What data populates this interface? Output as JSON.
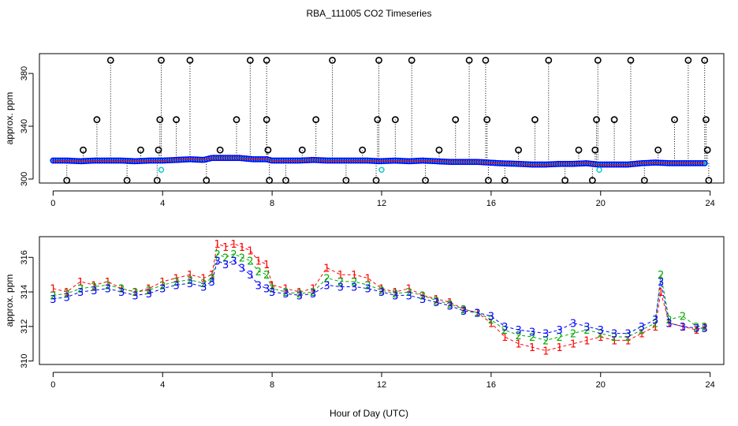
{
  "chart_data": {
    "title": "RBA_111005  CO2 Timeseries",
    "xlabel": "Hour of Day (UTC)",
    "panels": [
      {
        "id": "top",
        "type": "scatter",
        "ylabel": "approx. ppm",
        "xlim": [
          -0.5,
          24.5
        ],
        "ylim": [
          297,
          395
        ],
        "xticks": [
          0,
          4,
          8,
          12,
          16,
          20,
          24
        ],
        "yticks": [
          300,
          340,
          380
        ],
        "colors": {
          "outlier": "#000000",
          "trace": "#0000ff",
          "fill": "#00cccc",
          "fit": "#ff0000"
        },
        "baseline": {
          "x": [
            0,
            0.5,
            1,
            1.5,
            2,
            2.5,
            3,
            3.5,
            4,
            4.5,
            5,
            5.5,
            5.8,
            6.3,
            6.8,
            7.3,
            7.8,
            8,
            8.5,
            9,
            9.5,
            10,
            10.5,
            11,
            11.5,
            11.9,
            12.5,
            13,
            13.5,
            14,
            14.5,
            15,
            15.5,
            15.9,
            16.3,
            17,
            17.5,
            18,
            18.5,
            19,
            19.5,
            19.9,
            20.5,
            21,
            21.5,
            22,
            22.5,
            23,
            23.5,
            23.8
          ],
          "y": [
            314,
            314,
            313.5,
            314,
            314,
            314,
            313.5,
            314,
            314,
            314.5,
            315,
            314.5,
            316,
            316,
            316,
            315,
            315,
            314,
            314,
            314,
            314.5,
            314,
            314,
            314,
            314,
            313.5,
            314,
            313.5,
            314,
            313.5,
            313,
            313,
            313,
            312.5,
            312,
            311.5,
            311,
            311,
            311.5,
            311.5,
            312,
            311,
            311,
            311,
            312,
            312.5,
            312,
            312,
            312,
            312
          ]
        },
        "outliers": [
          {
            "x": 0.5,
            "y": 299
          },
          {
            "x": 1.1,
            "y": 322
          },
          {
            "x": 1.6,
            "y": 345
          },
          {
            "x": 2.1,
            "y": 390
          },
          {
            "x": 2.7,
            "y": 299
          },
          {
            "x": 3.2,
            "y": 322
          },
          {
            "x": 3.8,
            "y": 299
          },
          {
            "x": 3.85,
            "y": 322
          },
          {
            "x": 3.9,
            "y": 345
          },
          {
            "x": 3.95,
            "y": 390
          },
          {
            "x": 4.5,
            "y": 345
          },
          {
            "x": 5.0,
            "y": 390
          },
          {
            "x": 5.6,
            "y": 299
          },
          {
            "x": 6.1,
            "y": 322
          },
          {
            "x": 6.7,
            "y": 345
          },
          {
            "x": 7.2,
            "y": 390
          },
          {
            "x": 7.8,
            "y": 390
          },
          {
            "x": 7.8,
            "y": 345
          },
          {
            "x": 7.85,
            "y": 322
          },
          {
            "x": 7.9,
            "y": 299
          },
          {
            "x": 8.5,
            "y": 299
          },
          {
            "x": 9.1,
            "y": 322
          },
          {
            "x": 9.6,
            "y": 345
          },
          {
            "x": 10.2,
            "y": 390
          },
          {
            "x": 10.7,
            "y": 299
          },
          {
            "x": 11.3,
            "y": 322
          },
          {
            "x": 11.8,
            "y": 299
          },
          {
            "x": 11.85,
            "y": 345
          },
          {
            "x": 11.9,
            "y": 390
          },
          {
            "x": 12.5,
            "y": 345
          },
          {
            "x": 13.1,
            "y": 390
          },
          {
            "x": 13.6,
            "y": 299
          },
          {
            "x": 14.1,
            "y": 322
          },
          {
            "x": 14.7,
            "y": 345
          },
          {
            "x": 15.2,
            "y": 390
          },
          {
            "x": 15.8,
            "y": 390
          },
          {
            "x": 15.85,
            "y": 345
          },
          {
            "x": 15.9,
            "y": 299
          },
          {
            "x": 16.5,
            "y": 299
          },
          {
            "x": 17.0,
            "y": 322
          },
          {
            "x": 17.6,
            "y": 345
          },
          {
            "x": 18.1,
            "y": 390
          },
          {
            "x": 18.7,
            "y": 299
          },
          {
            "x": 19.2,
            "y": 322
          },
          {
            "x": 19.7,
            "y": 299
          },
          {
            "x": 19.8,
            "y": 322
          },
          {
            "x": 19.85,
            "y": 345
          },
          {
            "x": 19.9,
            "y": 390
          },
          {
            "x": 20.5,
            "y": 345
          },
          {
            "x": 21.1,
            "y": 390
          },
          {
            "x": 21.6,
            "y": 299
          },
          {
            "x": 22.1,
            "y": 322
          },
          {
            "x": 22.7,
            "y": 345
          },
          {
            "x": 23.2,
            "y": 390
          },
          {
            "x": 23.8,
            "y": 390
          },
          {
            "x": 23.85,
            "y": 345
          },
          {
            "x": 23.9,
            "y": 322
          },
          {
            "x": 23.95,
            "y": 299
          }
        ],
        "low_points": [
          {
            "x": 3.95,
            "y": 307
          },
          {
            "x": 12.0,
            "y": 307
          },
          {
            "x": 19.95,
            "y": 307
          }
        ]
      },
      {
        "id": "bottom",
        "type": "line",
        "ylabel": "approx. ppm",
        "xlim": [
          -0.5,
          24.5
        ],
        "ylim": [
          309.8,
          317.2
        ],
        "xticks": [
          0,
          4,
          8,
          12,
          16,
          20,
          24
        ],
        "yticks": [
          310,
          312,
          314,
          316
        ],
        "colors": {
          "1": "#ff0000",
          "2": "#00aa00",
          "3": "#0000ff"
        },
        "x": [
          0,
          0.5,
          1,
          1.5,
          2,
          2.5,
          3,
          3.5,
          4,
          4.5,
          5,
          5.5,
          5.8,
          6.0,
          6.3,
          6.6,
          6.9,
          7.2,
          7.5,
          7.8,
          8,
          8.5,
          9,
          9.5,
          10,
          10.5,
          11,
          11.5,
          12,
          12.5,
          13,
          13.5,
          14,
          14.5,
          15,
          15.5,
          16,
          16.5,
          17,
          17.5,
          18,
          18.5,
          19,
          19.5,
          20,
          20.5,
          21,
          21.5,
          22,
          22.2,
          22.5,
          23,
          23.5,
          23.8
        ],
        "series": [
          {
            "name": "1",
            "values": [
              314.2,
              314.0,
              314.6,
              314.4,
              314.6,
              314.2,
              314.0,
              314.2,
              314.6,
              314.8,
              315.0,
              314.8,
              315.0,
              316.8,
              316.6,
              316.8,
              316.6,
              316.4,
              315.8,
              315.6,
              314.4,
              314.2,
              314.0,
              314.2,
              315.4,
              315.0,
              315.0,
              314.8,
              314.2,
              314.0,
              314.2,
              313.8,
              313.6,
              313.4,
              313.0,
              312.8,
              312.2,
              311.4,
              311.0,
              310.8,
              310.6,
              310.8,
              311.0,
              311.2,
              311.4,
              311.2,
              311.2,
              311.6,
              312.0,
              314.0,
              312.2,
              312.0,
              311.8,
              312.0
            ]
          },
          {
            "name": "2",
            "values": [
              313.8,
              313.9,
              314.2,
              314.3,
              314.4,
              314.2,
              314.0,
              314.1,
              314.4,
              314.6,
              314.7,
              314.5,
              314.8,
              316.2,
              316.0,
              316.2,
              316.0,
              315.8,
              315.2,
              315.0,
              314.2,
              314.0,
              313.9,
              314.0,
              314.8,
              314.6,
              314.6,
              314.4,
              314.1,
              313.9,
              314.0,
              313.8,
              313.5,
              313.3,
              313.0,
              312.8,
              312.4,
              311.8,
              311.5,
              311.4,
              311.2,
              311.4,
              311.6,
              311.8,
              311.6,
              311.4,
              311.4,
              311.8,
              312.2,
              315.0,
              312.4,
              312.6,
              312.0,
              312.0
            ]
          },
          {
            "name": "3",
            "values": [
              313.6,
              313.7,
              314.0,
              314.1,
              314.2,
              314.0,
              313.8,
              313.9,
              314.2,
              314.4,
              314.5,
              314.3,
              314.6,
              315.8,
              315.6,
              315.8,
              315.4,
              315.0,
              314.4,
              314.2,
              314.0,
              313.9,
              313.8,
              313.9,
              314.4,
              314.3,
              314.3,
              314.2,
              314.0,
              313.8,
              313.8,
              313.6,
              313.4,
              313.2,
              312.9,
              312.8,
              312.6,
              312.0,
              311.8,
              311.7,
              311.6,
              311.8,
              312.2,
              312.0,
              311.8,
              311.6,
              311.6,
              312.0,
              312.4,
              314.6,
              312.2,
              312.0,
              311.9,
              311.9
            ]
          }
        ]
      }
    ]
  }
}
